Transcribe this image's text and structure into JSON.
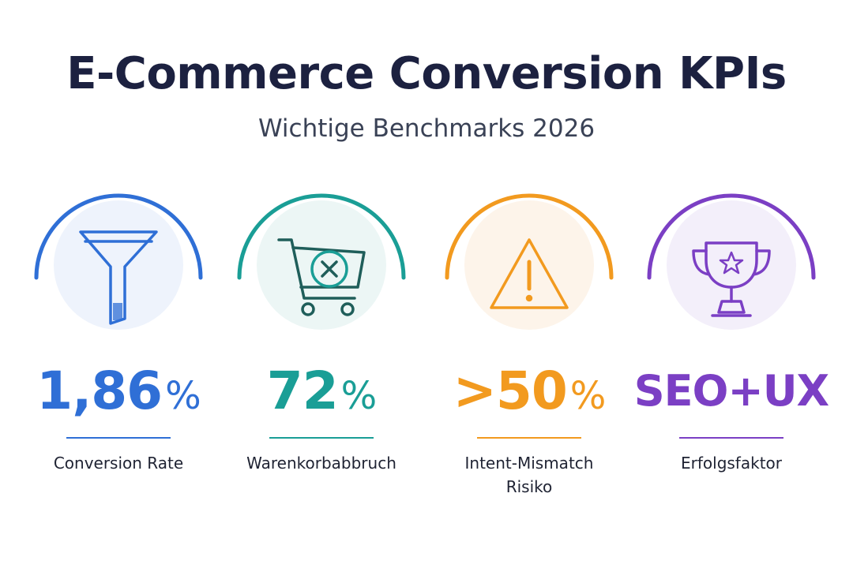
{
  "header": {
    "title": "E-Commerce Conversion KPIs",
    "subtitle": "Wichtige Benchmarks 2026"
  },
  "kpis": [
    {
      "icon": "funnel-icon",
      "color": "#2f6fd6",
      "bg": "#eef3fc",
      "value": "1,86",
      "unit": "%",
      "label": "Conversion Rate"
    },
    {
      "icon": "shopping-cart-x-icon",
      "color": "#1a9e96",
      "bg": "#ecf6f5",
      "value": "72",
      "unit": "%",
      "label": "Warenkorbabbruch"
    },
    {
      "icon": "warning-triangle-icon",
      "color": "#f29a1f",
      "bg": "#fdf4ea",
      "value": ">50",
      "unit": "%",
      "label_line1": "Intent-Mismatch",
      "label_line2": "Risiko"
    },
    {
      "icon": "trophy-icon",
      "color": "#7b3fc4",
      "bg": "#f3effa",
      "value": "SEO+UX",
      "label": "Erfolgsfaktor"
    }
  ]
}
